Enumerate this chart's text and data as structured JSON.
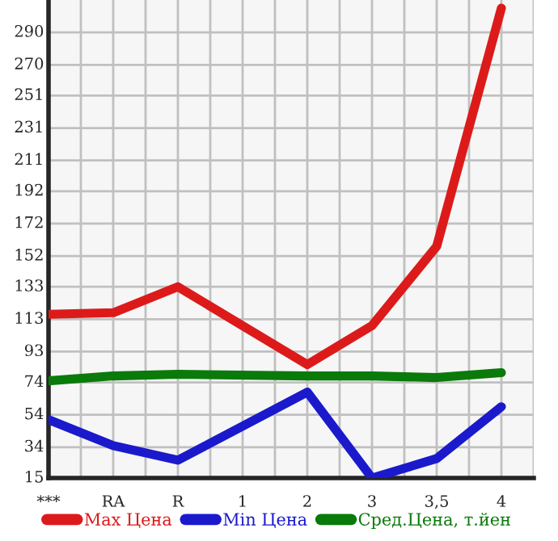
{
  "chart_data": {
    "type": "line",
    "categories": [
      "***",
      "RA",
      "R",
      "1",
      "2",
      "3",
      "3,5",
      "4"
    ],
    "series": [
      {
        "name": "Max Цена",
        "color": "#dd1a1a",
        "values": [
          116,
          117,
          133,
          null,
          85,
          109,
          158,
          305
        ]
      },
      {
        "name": "Min Цена",
        "color": "#1a1acc",
        "values": [
          51,
          35,
          26,
          null,
          68,
          15,
          27,
          59
        ]
      },
      {
        "name": "Сред.Цена, т.йен",
        "color": "#0a7a0a",
        "values": [
          75,
          78,
          79,
          null,
          78,
          78,
          77,
          80
        ]
      }
    ],
    "ylim": [
      15,
      310
    ],
    "yticks": [
      15,
      34,
      54,
      74,
      93,
      113,
      133,
      152,
      172,
      192,
      211,
      231,
      251,
      270,
      290
    ],
    "grid": true,
    "legend": "bottom",
    "marker": "none",
    "line_style": "solid"
  }
}
